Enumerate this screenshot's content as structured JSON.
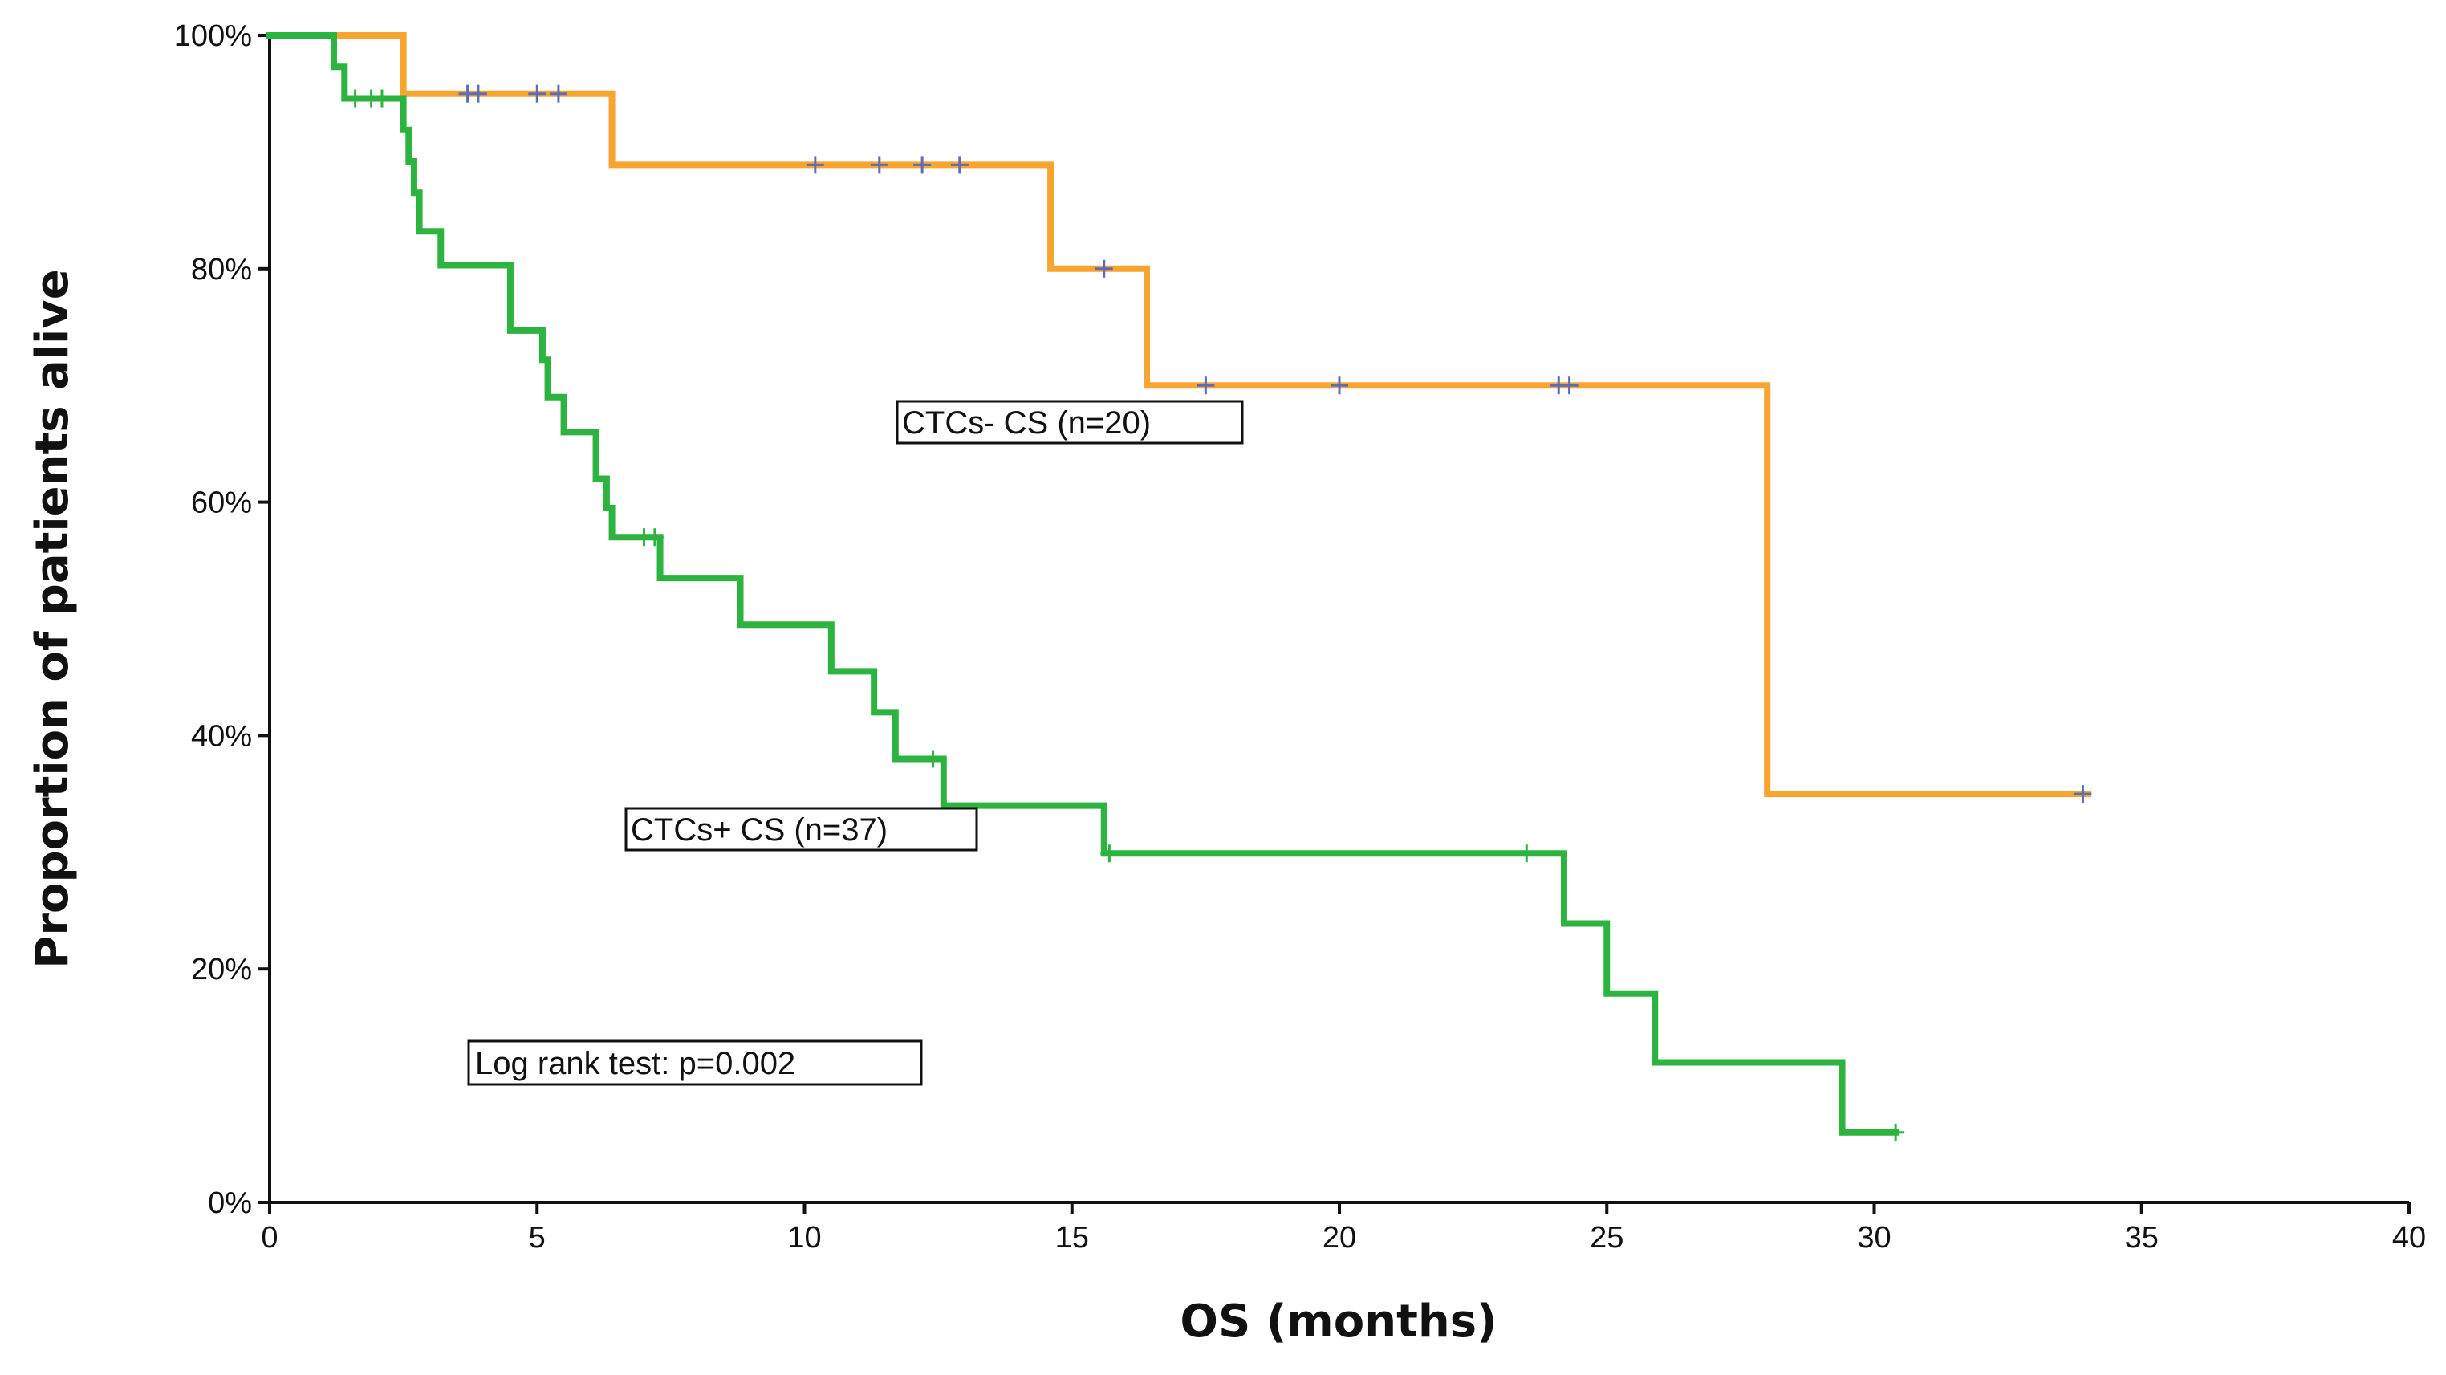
{
  "chart_data": {
    "type": "line",
    "subtype": "kaplan-meier",
    "title": "",
    "xlabel": "OS (months)",
    "ylabel": "Proportion of patients alive",
    "xlim": [
      0,
      40
    ],
    "ylim": [
      0,
      100
    ],
    "x_ticks": [
      0,
      5,
      10,
      15,
      20,
      25,
      30,
      35,
      40
    ],
    "x_tick_labels": [
      "0",
      "5",
      "10",
      "15",
      "20",
      "25",
      "30",
      "35",
      "40"
    ],
    "y_ticks": [
      0,
      20,
      40,
      60,
      80,
      100
    ],
    "y_tick_labels": [
      "0%",
      "20%",
      "40%",
      "60%",
      "80%",
      "100%"
    ],
    "grid": false,
    "series": [
      {
        "name": "CTCs- CS (n=20)",
        "color": "#F7A530",
        "censor_color": "#5B6DB8",
        "steps": [
          {
            "x": 0,
            "y": 100
          },
          {
            "x": 2.5,
            "y": 95
          },
          {
            "x": 6.4,
            "y": 88.9
          },
          {
            "x": 14.6,
            "y": 80
          },
          {
            "x": 16.4,
            "y": 70
          },
          {
            "x": 28,
            "y": 35
          },
          {
            "x": 34,
            "y": 35
          }
        ],
        "censored": [
          {
            "x": 3.7,
            "y": 95
          },
          {
            "x": 3.9,
            "y": 95
          },
          {
            "x": 5.0,
            "y": 95
          },
          {
            "x": 5.4,
            "y": 95
          },
          {
            "x": 10.2,
            "y": 88.9
          },
          {
            "x": 11.4,
            "y": 88.9
          },
          {
            "x": 12.2,
            "y": 88.9
          },
          {
            "x": 12.9,
            "y": 88.9
          },
          {
            "x": 15.6,
            "y": 80
          },
          {
            "x": 17.5,
            "y": 70
          },
          {
            "x": 20.0,
            "y": 70
          },
          {
            "x": 24.1,
            "y": 70
          },
          {
            "x": 24.3,
            "y": 70
          },
          {
            "x": 33.9,
            "y": 35
          }
        ]
      },
      {
        "name": "CTCs+ CS (n=37)",
        "color": "#2DB33F",
        "censor_color": "#2DB33F",
        "steps": [
          {
            "x": 0,
            "y": 100
          },
          {
            "x": 1.2,
            "y": 97.3
          },
          {
            "x": 1.4,
            "y": 94.6
          },
          {
            "x": 2.5,
            "y": 91.9
          },
          {
            "x": 2.6,
            "y": 89.2
          },
          {
            "x": 2.7,
            "y": 86.5
          },
          {
            "x": 2.8,
            "y": 83.2
          },
          {
            "x": 3.2,
            "y": 80.3
          },
          {
            "x": 4.5,
            "y": 74.7
          },
          {
            "x": 5.1,
            "y": 72.2
          },
          {
            "x": 5.2,
            "y": 69.0
          },
          {
            "x": 5.5,
            "y": 66.0
          },
          {
            "x": 6.1,
            "y": 62.0
          },
          {
            "x": 6.3,
            "y": 59.5
          },
          {
            "x": 6.4,
            "y": 57.0
          },
          {
            "x": 7.3,
            "y": 53.5
          },
          {
            "x": 8.8,
            "y": 49.5
          },
          {
            "x": 10.5,
            "y": 45.5
          },
          {
            "x": 11.3,
            "y": 42.0
          },
          {
            "x": 11.7,
            "y": 38.0
          },
          {
            "x": 12.6,
            "y": 34.0
          },
          {
            "x": 15.6,
            "y": 29.9
          },
          {
            "x": 24.2,
            "y": 23.9
          },
          {
            "x": 25.0,
            "y": 17.9
          },
          {
            "x": 25.9,
            "y": 12.0
          },
          {
            "x": 29.4,
            "y": 6.0
          },
          {
            "x": 30.4,
            "y": 6.0
          }
        ],
        "censored": [
          {
            "x": 1.6,
            "y": 94.6
          },
          {
            "x": 1.9,
            "y": 94.6
          },
          {
            "x": 2.1,
            "y": 94.6
          },
          {
            "x": 7.0,
            "y": 57.0
          },
          {
            "x": 7.2,
            "y": 57.0
          },
          {
            "x": 12.4,
            "y": 38.0
          },
          {
            "x": 15.7,
            "y": 29.9
          },
          {
            "x": 23.5,
            "y": 29.9
          },
          {
            "x": 30.4,
            "y": 6.0
          }
        ]
      }
    ],
    "annotations": [
      {
        "id": "ctcs-neg-label",
        "text": "CTCs- CS (n=20)"
      },
      {
        "id": "ctcs-pos-label",
        "text": "CTCs+ CS (n=37)"
      },
      {
        "id": "log-rank-label",
        "text": "Log rank test: p=0.002"
      }
    ]
  }
}
